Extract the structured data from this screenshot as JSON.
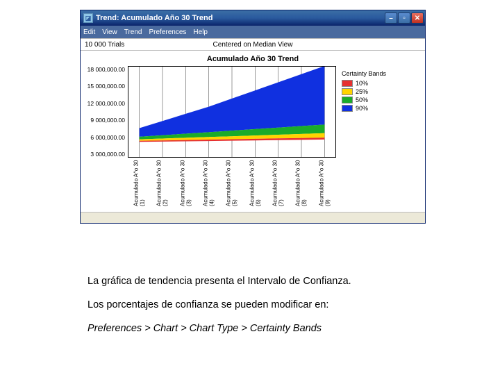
{
  "window": {
    "title": "Trend: Acumulado Año 30 Trend",
    "menu": [
      "Edit",
      "View",
      "Trend",
      "Preferences",
      "Help"
    ],
    "info_left": "10 000 Trials",
    "info_center": "Centered on Median View"
  },
  "chart": {
    "type": "area",
    "title": "Acumulado Año 30 Trend",
    "ylim": [
      0,
      18000000
    ],
    "y_ticks": [
      "18 000,000.00",
      "15 000,000.00",
      "12 000,000.00",
      "9 000,000.00",
      "6 000,000.00",
      "3 000,000.00"
    ],
    "x_labels": [
      "Acumulado A^o 30 (1)",
      "Acumulado A^o 30 (2)",
      "Acumulado A^o 30 (3)",
      "Acumulado A^o 30 (4)",
      "Acumulado A^o 30 (5)",
      "Acumulado A^o 30 (6)",
      "Acumulado A^o 30 (7)",
      "Acumulado A^o 30 (8)",
      "Acumulado A^o 30 (9)"
    ],
    "background_color": "#ffffff",
    "grid_color": "#555555",
    "bands": [
      {
        "label": "10%",
        "color": "#e63030",
        "lo": [
          3100000,
          3150000,
          3200000,
          3260000,
          3320000,
          3380000,
          3440000,
          3500000,
          3560000
        ],
        "hi": [
          3300000,
          3380000,
          3460000,
          3540000,
          3620000,
          3700000,
          3780000,
          3860000,
          3940000
        ]
      },
      {
        "label": "25%",
        "color": "#ffd400",
        "lo": [
          3300000,
          3380000,
          3460000,
          3540000,
          3620000,
          3700000,
          3780000,
          3860000,
          3940000
        ],
        "hi": [
          3600000,
          3750000,
          3900000,
          4050000,
          4200000,
          4350000,
          4500000,
          4650000,
          4800000
        ]
      },
      {
        "label": "50%",
        "color": "#1aab2a",
        "lo": [
          3600000,
          3750000,
          3900000,
          4050000,
          4200000,
          4350000,
          4500000,
          4650000,
          4800000
        ],
        "hi": [
          4100000,
          4400000,
          4700000,
          5000000,
          5300000,
          5600000,
          5900000,
          6200000,
          6500000
        ]
      },
      {
        "label": "90%",
        "color": "#1030e0",
        "lo": [
          4100000,
          4400000,
          4700000,
          5000000,
          5300000,
          5600000,
          5900000,
          6200000,
          6500000
        ],
        "hi": [
          5800000,
          7200000,
          8600000,
          10000000,
          11600000,
          13200000,
          14800000,
          16400000,
          18000000
        ]
      }
    ],
    "legend_title": "Certainty Bands",
    "legend": [
      {
        "label": "10%",
        "color": "#e63030"
      },
      {
        "label": "25%",
        "color": "#ffd400"
      },
      {
        "label": "50%",
        "color": "#1aab2a"
      },
      {
        "label": "90%",
        "color": "#1030e0"
      }
    ]
  },
  "caption": {
    "line1": "La gráfica de tendencia presenta el Intervalo de Confianza.",
    "line2": "Los porcentajes de confianza se pueden modificar en:",
    "line3": "Preferences > Chart > Chart Type > Certainty Bands"
  }
}
